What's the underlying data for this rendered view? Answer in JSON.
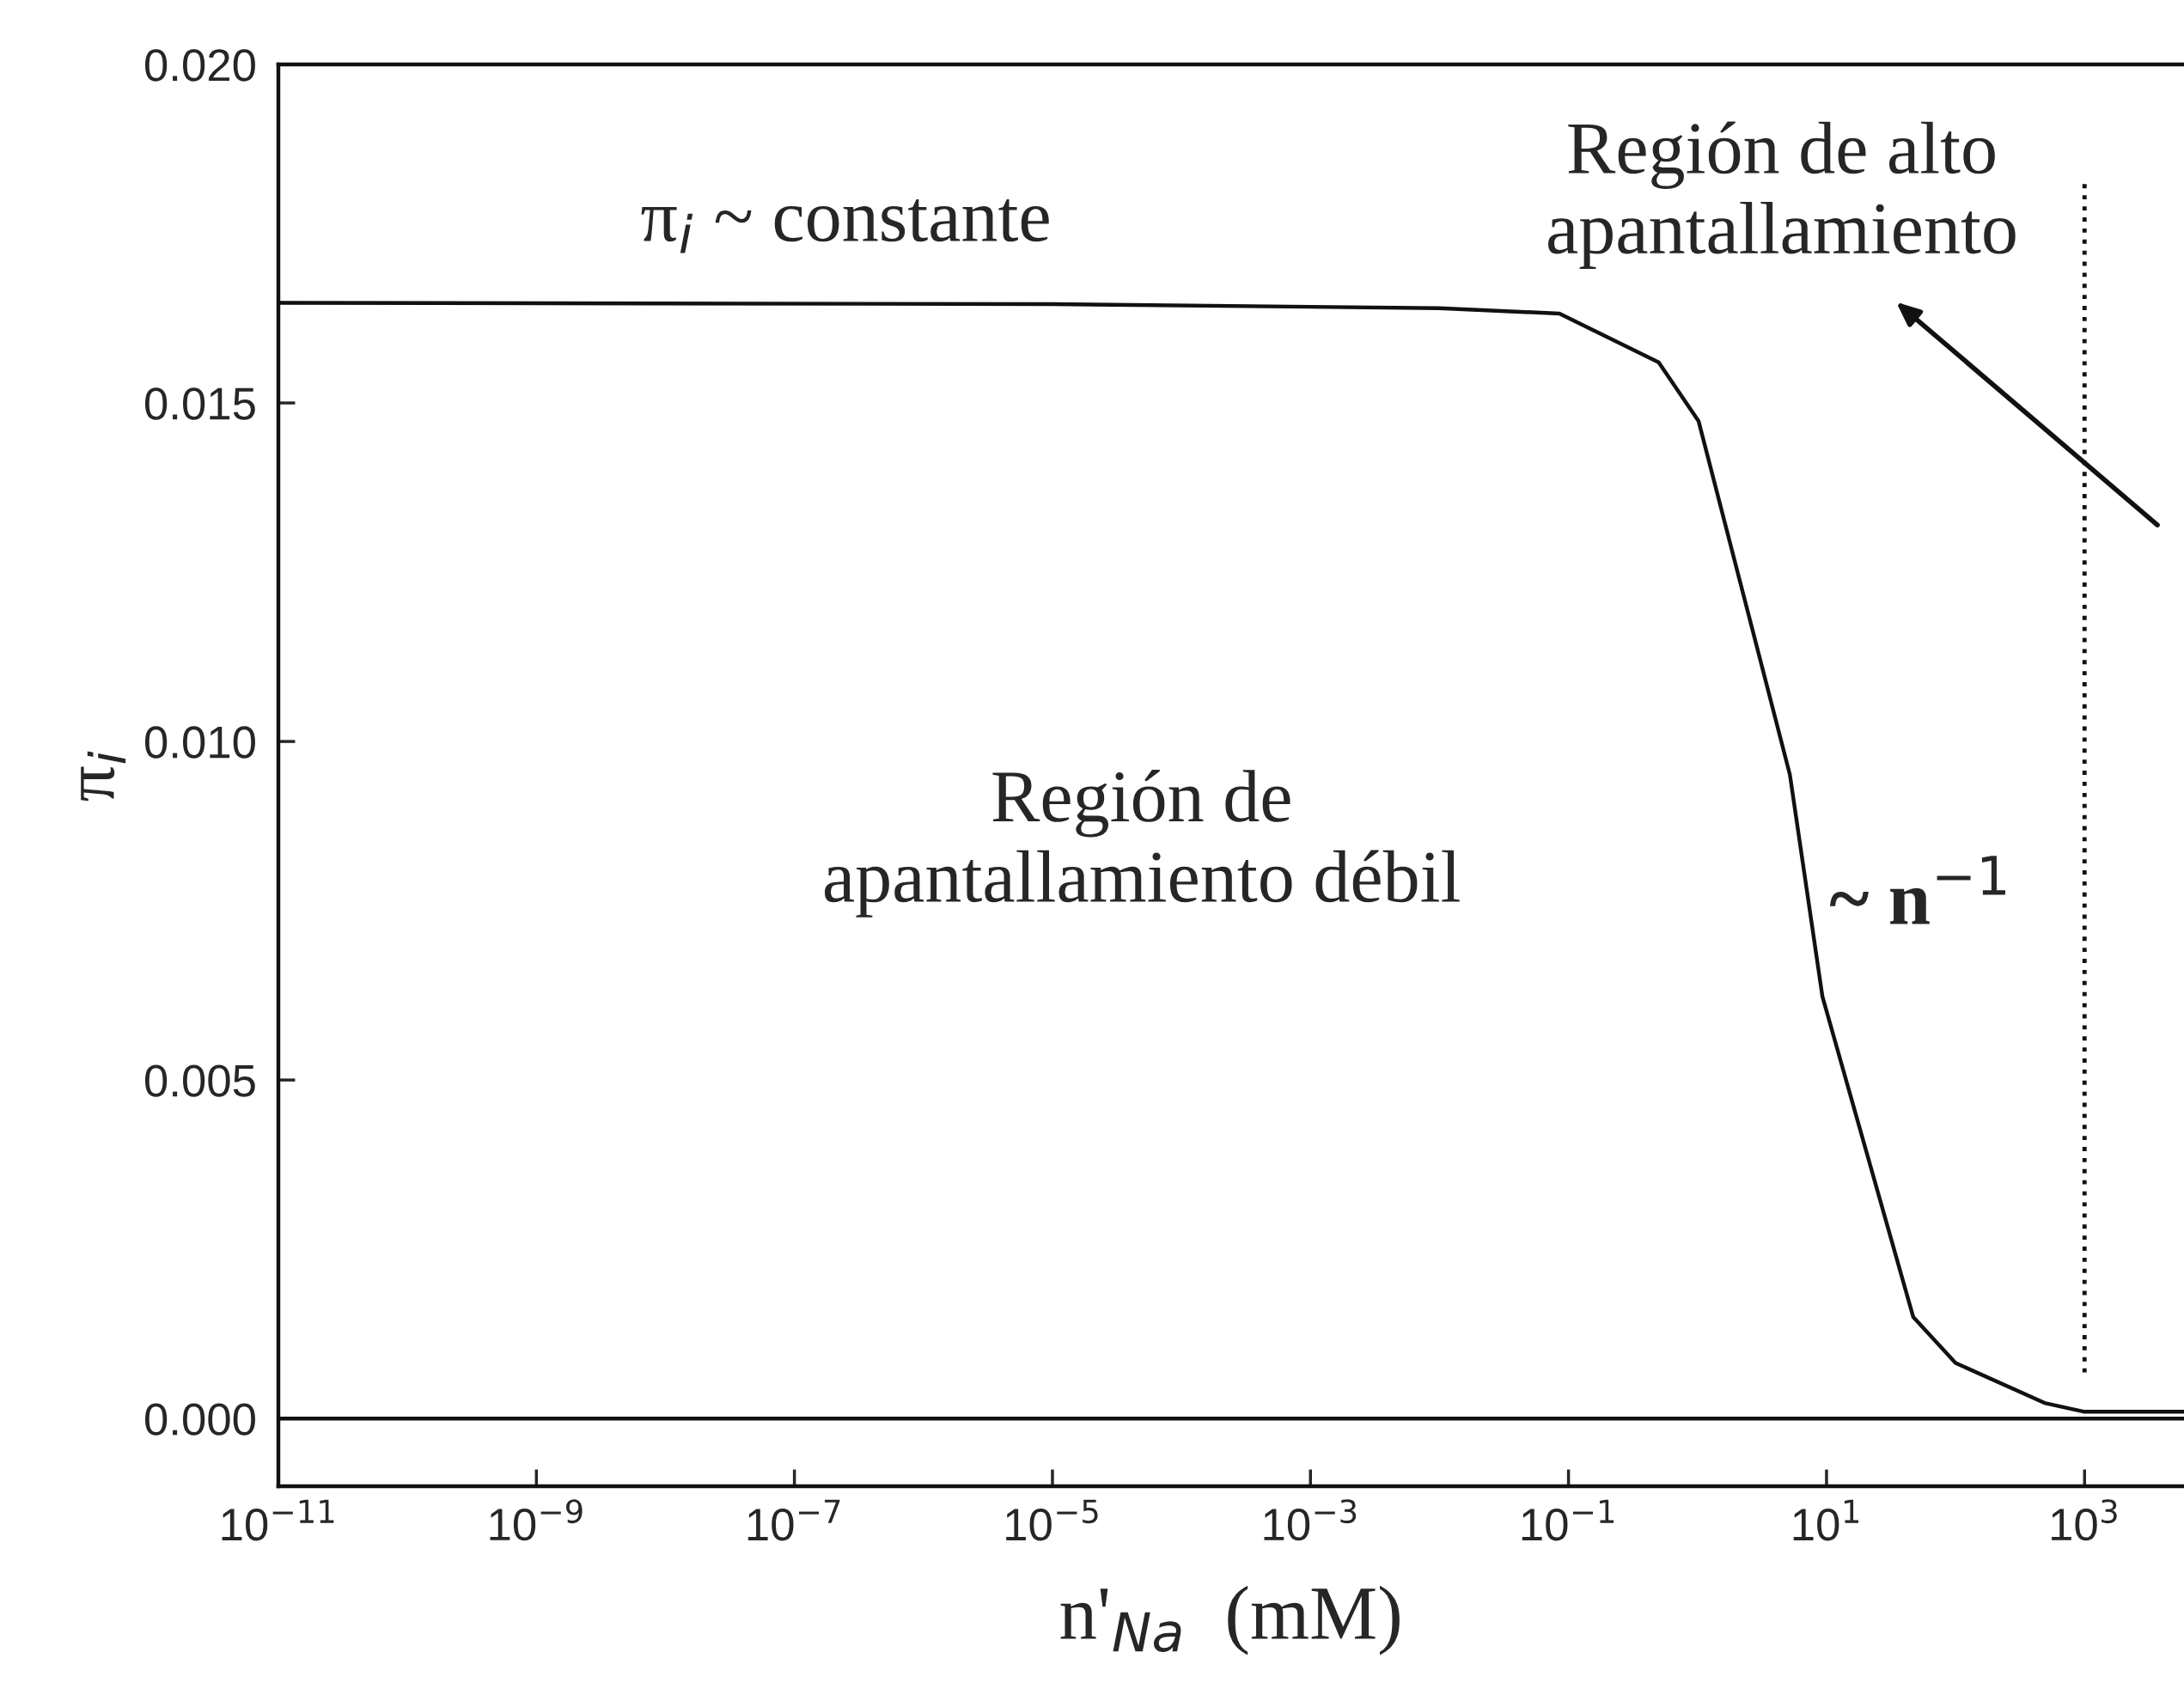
{
  "chart_data": {
    "type": "line",
    "xlabel": "n'$_{Na}$  (mM)",
    "ylabel": "π$_{i}$",
    "log": "x",
    "x": [
      1e-11,
      1e-05,
      0.01,
      0.085,
      0.5,
      1.02,
      5.2,
      9.3,
      47,
      100,
      490,
      1000,
      5900
    ],
    "series": [
      {
        "color": "#111111",
        "values": [
          0.01648,
          0.01646,
          0.0164,
          0.01632,
          0.0156,
          0.01473,
          0.00951,
          0.00623,
          0.0015,
          0.00082,
          0.00023,
          0.0001,
          0.0001
        ]
      }
    ],
    "xlim": [
      1e-11,
      5900
    ],
    "ylim": [
      -0.001,
      0.02
    ],
    "xticks": [
      {
        "value": 1e-11,
        "label": "10$^{−11}$"
      },
      {
        "value": 1e-09,
        "label": "10$^{−9}$"
      },
      {
        "value": 1e-07,
        "label": "10$^{−7}$"
      },
      {
        "value": 1e-05,
        "label": "10$^{−5}$"
      },
      {
        "value": 0.001,
        "label": "10$^{−3}$"
      },
      {
        "value": 0.1,
        "label": "10$^{−1}$"
      },
      {
        "value": 10,
        "label": "10$^{1}$"
      },
      {
        "value": 1000,
        "label": "10$^{3}$"
      }
    ],
    "yticks": [
      {
        "value": 0,
        "label": "0.000"
      },
      {
        "value": 0.005,
        "label": "0.005"
      },
      {
        "value": 0.01,
        "label": "0.010"
      },
      {
        "value": 0.015,
        "label": "0.015"
      },
      {
        "value": 0.02,
        "label": "0.020"
      }
    ],
    "ref_lines": [
      {
        "axis": "y",
        "value": 0,
        "color": "#111111",
        "line_style": "solid"
      },
      {
        "axis": "x",
        "value": 1000,
        "color": "#111111",
        "line_style": "dotted"
      }
    ],
    "annotations": [
      "π$_{i}$ ~ constante",
      "Región de\napantallamiento débil",
      "~ n$^{−1}$",
      "Región de alto\napantallamiento"
    ],
    "grid": false,
    "legend": false,
    "marker": "none",
    "line_style": "solid"
  }
}
